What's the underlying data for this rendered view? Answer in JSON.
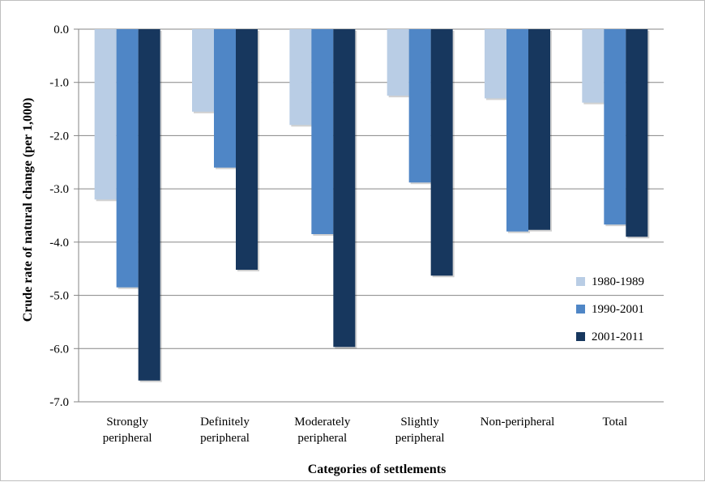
{
  "chart_data": {
    "type": "bar",
    "title": "",
    "xlabel": "Categories of settlements",
    "ylabel": "Crude rate of natural change (per 1,000)",
    "ylim": [
      -7.0,
      0.0
    ],
    "yticks": [
      "0.0",
      "-1.0",
      "-2.0",
      "-3.0",
      "-4.0",
      "-5.0",
      "-6.0",
      "-7.0"
    ],
    "grid": true,
    "legend_position": "right",
    "categories": [
      [
        "Strongly",
        "peripheral"
      ],
      [
        "Definitely",
        "peripheral"
      ],
      [
        "Moderately",
        "peripheral"
      ],
      [
        "Slightly",
        "peripheral"
      ],
      [
        "Non-peripheral"
      ],
      [
        "Total"
      ]
    ],
    "series": [
      {
        "name": "1980-1989",
        "color": "#b9cde5",
        "values": [
          -3.2,
          -1.55,
          -1.8,
          -1.25,
          -1.3,
          -1.38
        ]
      },
      {
        "name": "1990-2001",
        "color": "#4f86c6",
        "values": [
          -4.85,
          -2.6,
          -3.85,
          -2.88,
          -3.8,
          -3.67
        ]
      },
      {
        "name": "2001-2011",
        "color": "#17375e",
        "values": [
          -6.6,
          -4.52,
          -5.97,
          -4.63,
          -3.77,
          -3.9
        ]
      }
    ]
  }
}
